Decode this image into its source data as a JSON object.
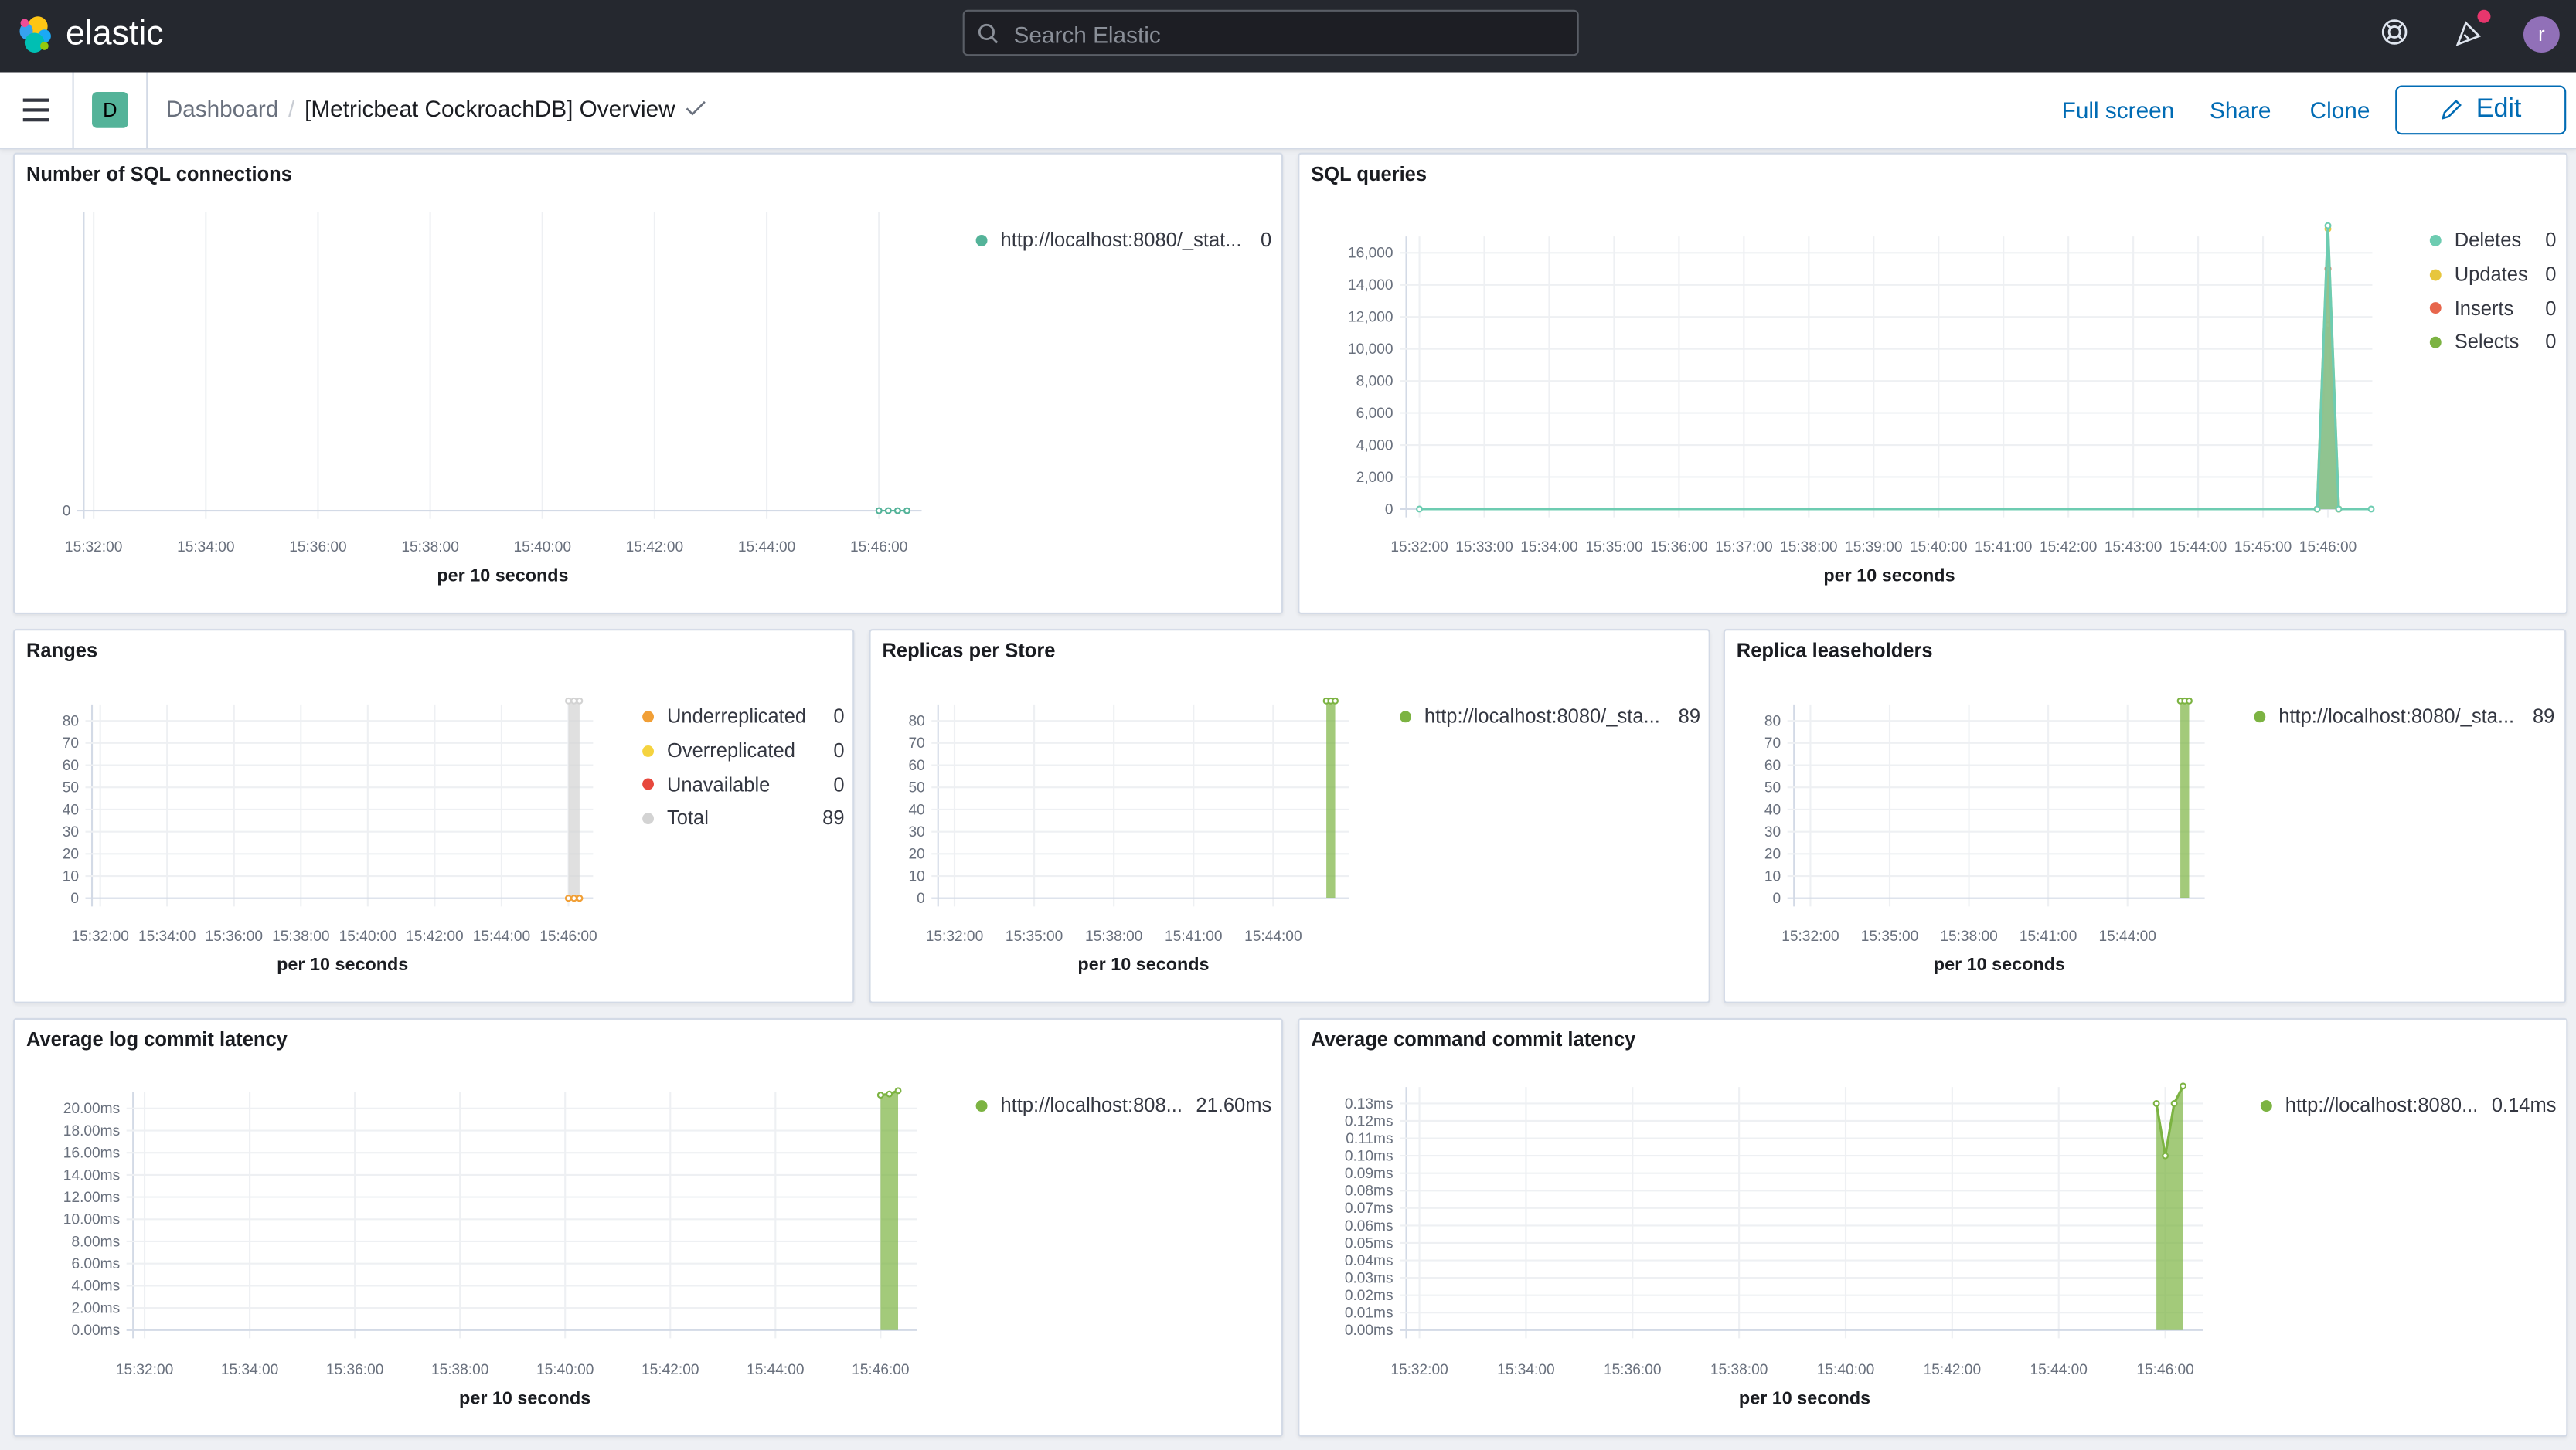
{
  "header": {
    "brand": "elastic",
    "search_placeholder": "Search Elastic",
    "avatar_initial": "r",
    "colors": {
      "bar": "#25282f",
      "notification_dot": "#e7366d",
      "avatar": "#9170b8"
    }
  },
  "nav": {
    "space_badge": "D",
    "breadcrumb_root": "Dashboard",
    "breadcrumb_separator": "/",
    "dashboard_title": "[Metricbeat CockroachDB] Overview",
    "full_screen": "Full screen",
    "share": "Share",
    "clone": "Clone",
    "edit": "Edit"
  },
  "panels": [
    {
      "title": "Number of SQL connections",
      "chart_data": {
        "type": "line",
        "xlabel": "per 10 seconds",
        "x_ticks": [
          "15:32:00",
          "15:34:00",
          "15:36:00",
          "15:38:00",
          "15:40:00",
          "15:42:00",
          "15:44:00",
          "15:46:00"
        ],
        "y_ticks": [
          "0"
        ],
        "y_values": [
          0
        ],
        "ylim": [
          0,
          1
        ],
        "grid": true,
        "legend_position": "right",
        "series": [
          {
            "name": "http://localhost:8080/_stat...",
            "legend_value": "0",
            "color": "#54b399",
            "style": "dots",
            "points": [
              [
                "15:46:00",
                0
              ],
              [
                "15:46:10",
                0
              ],
              [
                "15:46:20",
                0
              ],
              [
                "15:46:30",
                0
              ]
            ]
          }
        ]
      }
    },
    {
      "title": "SQL queries",
      "chart_data": {
        "type": "area",
        "xlabel": "per 10 seconds",
        "x_ticks": [
          "15:32:00",
          "15:33:00",
          "15:34:00",
          "15:35:00",
          "15:36:00",
          "15:37:00",
          "15:38:00",
          "15:39:00",
          "15:40:00",
          "15:41:00",
          "15:42:00",
          "15:43:00",
          "15:44:00",
          "15:45:00",
          "15:46:00"
        ],
        "y_ticks": [
          "0",
          "2,000",
          "4,000",
          "6,000",
          "8,000",
          "10,000",
          "12,000",
          "14,000",
          "16,000"
        ],
        "y_values": [
          0,
          2000,
          4000,
          6000,
          8000,
          10000,
          12000,
          14000,
          16000
        ],
        "ylim": [
          0,
          16000
        ],
        "grid": true,
        "legend_position": "right",
        "series": [
          {
            "name": "Deletes",
            "legend_value": "0",
            "color": "#6dccb1",
            "style": "area",
            "points": [
              [
                "15:32:00",
                0
              ],
              [
                "15:45:50",
                0
              ],
              [
                "15:46:00",
                17700
              ],
              [
                "15:46:10",
                0
              ],
              [
                "15:46:40",
                0
              ]
            ]
          },
          {
            "name": "Updates",
            "legend_value": "0",
            "color": "#e7c63d",
            "style": "area",
            "points": [
              [
                "15:45:50",
                0
              ],
              [
                "15:46:00",
                17500
              ],
              [
                "15:46:10",
                0
              ]
            ]
          },
          {
            "name": "Inserts",
            "legend_value": "0",
            "color": "#e7664c",
            "style": "area",
            "points": [
              [
                "15:45:50",
                0
              ],
              [
                "15:46:00",
                15000
              ],
              [
                "15:46:10",
                0
              ]
            ]
          },
          {
            "name": "Selects",
            "legend_value": "0",
            "color": "#7cb342",
            "style": "area",
            "points": [
              [
                "15:45:50",
                0
              ],
              [
                "15:46:00",
                11500
              ],
              [
                "15:46:10",
                0
              ]
            ]
          }
        ]
      }
    },
    {
      "title": "Ranges",
      "chart_data": {
        "type": "area",
        "xlabel": "per 10 seconds",
        "x_ticks": [
          "15:32:00",
          "15:34:00",
          "15:36:00",
          "15:38:00",
          "15:40:00",
          "15:42:00",
          "15:44:00",
          "15:46:00"
        ],
        "y_ticks": [
          "0",
          "10",
          "20",
          "30",
          "40",
          "50",
          "60",
          "70",
          "80"
        ],
        "y_values": [
          0,
          10,
          20,
          30,
          40,
          50,
          60,
          70,
          80
        ],
        "ylim": [
          0,
          80
        ],
        "grid": true,
        "legend_position": "right",
        "series": [
          {
            "name": "Underreplicated",
            "legend_value": "0",
            "color": "#f19f36",
            "style": "dots",
            "points": [
              [
                "15:46:00",
                0
              ],
              [
                "15:46:10",
                0
              ],
              [
                "15:46:20",
                0
              ]
            ]
          },
          {
            "name": "Overreplicated",
            "legend_value": "0",
            "color": "#f5d33f",
            "style": "dots",
            "points": [
              [
                "15:46:00",
                0
              ],
              [
                "15:46:10",
                0
              ],
              [
                "15:46:20",
                0
              ]
            ]
          },
          {
            "name": "Unavailable",
            "legend_value": "0",
            "color": "#e7483d",
            "style": "dots",
            "points": [
              [
                "15:46:00",
                0
              ],
              [
                "15:46:10",
                0
              ],
              [
                "15:46:20",
                0
              ]
            ]
          },
          {
            "name": "Total",
            "legend_value": "89",
            "color": "#d3d3d3",
            "style": "area",
            "points": [
              [
                "15:46:00",
                89
              ],
              [
                "15:46:10",
                89
              ],
              [
                "15:46:20",
                89
              ]
            ]
          }
        ]
      }
    },
    {
      "title": "Replicas per Store",
      "chart_data": {
        "type": "area",
        "xlabel": "per 10 seconds",
        "x_ticks": [
          "15:32:00",
          "15:35:00",
          "15:38:00",
          "15:41:00",
          "15:44:00"
        ],
        "y_ticks": [
          "0",
          "10",
          "20",
          "30",
          "40",
          "50",
          "60",
          "70",
          "80"
        ],
        "y_values": [
          0,
          10,
          20,
          30,
          40,
          50,
          60,
          70,
          80
        ],
        "ylim": [
          0,
          80
        ],
        "grid": true,
        "legend_position": "right",
        "series": [
          {
            "name": "http://localhost:8080/_sta...",
            "legend_value": "89",
            "color": "#7cb342",
            "style": "area",
            "points": [
              [
                "15:46:00",
                89
              ],
              [
                "15:46:10",
                89
              ],
              [
                "15:46:20",
                89
              ]
            ]
          }
        ]
      }
    },
    {
      "title": "Replica leaseholders",
      "chart_data": {
        "type": "area",
        "xlabel": "per 10 seconds",
        "x_ticks": [
          "15:32:00",
          "15:35:00",
          "15:38:00",
          "15:41:00",
          "15:44:00"
        ],
        "y_ticks": [
          "0",
          "10",
          "20",
          "30",
          "40",
          "50",
          "60",
          "70",
          "80"
        ],
        "y_values": [
          0,
          10,
          20,
          30,
          40,
          50,
          60,
          70,
          80
        ],
        "ylim": [
          0,
          80
        ],
        "grid": true,
        "legend_position": "right",
        "series": [
          {
            "name": "http://localhost:8080/_sta...",
            "legend_value": "89",
            "color": "#7cb342",
            "style": "area",
            "points": [
              [
                "15:46:00",
                89
              ],
              [
                "15:46:10",
                89
              ],
              [
                "15:46:20",
                89
              ]
            ]
          }
        ]
      }
    },
    {
      "title": "Average log commit latency",
      "chart_data": {
        "type": "area",
        "xlabel": "per 10 seconds",
        "x_ticks": [
          "15:32:00",
          "15:34:00",
          "15:36:00",
          "15:38:00",
          "15:40:00",
          "15:42:00",
          "15:44:00",
          "15:46:00"
        ],
        "y_ticks": [
          "0.00ms",
          "2.00ms",
          "4.00ms",
          "6.00ms",
          "8.00ms",
          "10.00ms",
          "12.00ms",
          "14.00ms",
          "16.00ms",
          "18.00ms",
          "20.00ms"
        ],
        "y_values": [
          0,
          2,
          4,
          6,
          8,
          10,
          12,
          14,
          16,
          18,
          20
        ],
        "ylim": [
          0,
          20
        ],
        "grid": true,
        "legend_position": "right",
        "series": [
          {
            "name": "http://localhost:808...",
            "legend_value": "21.60ms",
            "color": "#7cb342",
            "style": "area",
            "points": [
              [
                "15:46:00",
                21.2
              ],
              [
                "15:46:10",
                21.3
              ],
              [
                "15:46:20",
                21.6
              ]
            ]
          }
        ]
      }
    },
    {
      "title": "Average command commit latency",
      "chart_data": {
        "type": "area",
        "xlabel": "per 10 seconds",
        "x_ticks": [
          "15:32:00",
          "15:34:00",
          "15:36:00",
          "15:38:00",
          "15:40:00",
          "15:42:00",
          "15:44:00",
          "15:46:00"
        ],
        "y_ticks": [
          "0.00ms",
          "0.01ms",
          "0.02ms",
          "0.03ms",
          "0.04ms",
          "0.05ms",
          "0.06ms",
          "0.07ms",
          "0.08ms",
          "0.09ms",
          "0.10ms",
          "0.11ms",
          "0.12ms",
          "0.13ms"
        ],
        "y_values": [
          0,
          0.01,
          0.02,
          0.03,
          0.04,
          0.05,
          0.06,
          0.07,
          0.08,
          0.09,
          0.1,
          0.11,
          0.12,
          0.13
        ],
        "ylim": [
          0,
          0.13
        ],
        "grid": true,
        "legend_position": "right",
        "series": [
          {
            "name": "http://localhost:8080...",
            "legend_value": "0.14ms",
            "color": "#7cb342",
            "style": "area",
            "points": [
              [
                "15:45:50",
                0.13
              ],
              [
                "15:46:00",
                0.1
              ],
              [
                "15:46:10",
                0.13
              ],
              [
                "15:46:20",
                0.14
              ]
            ]
          }
        ]
      }
    }
  ]
}
